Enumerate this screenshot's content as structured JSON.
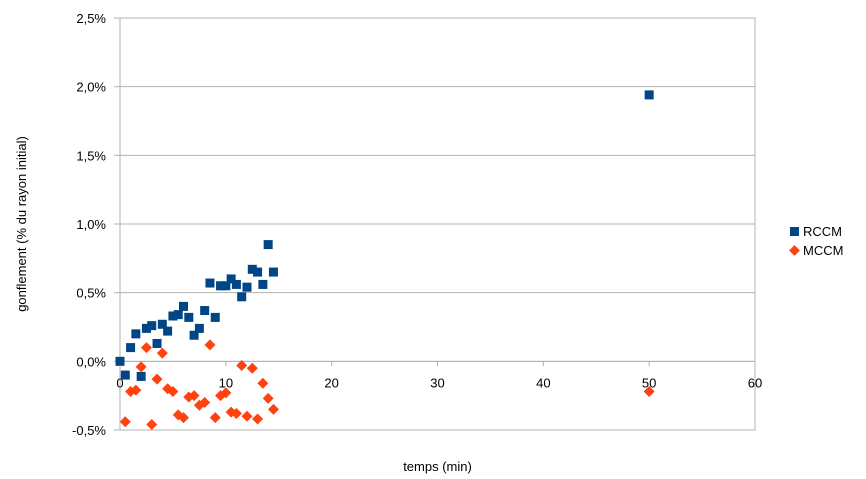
{
  "chart_data": {
    "type": "scatter",
    "title": "",
    "xlabel": "temps (min)",
    "ylabel": "gonflement (% du rayon initial)",
    "xlim": [
      0,
      60
    ],
    "ylim": [
      -0.5,
      2.5
    ],
    "x_ticks": [
      "0",
      "10",
      "20",
      "30",
      "40",
      "50",
      "60"
    ],
    "y_ticks": [
      "-0,5%",
      "0,0%",
      "0,5%",
      "1,0%",
      "1,5%",
      "2,0%",
      "2,5%"
    ],
    "grid": "horizontal",
    "legend_position": "right",
    "series": [
      {
        "name": "RCCM",
        "color": "#004586",
        "marker": "square",
        "x": [
          0,
          0.5,
          1,
          1.5,
          2,
          2.5,
          3,
          3.5,
          4,
          4.5,
          5,
          5.5,
          6,
          6.5,
          7,
          7.5,
          8,
          8.5,
          9,
          9.5,
          10,
          10.5,
          11,
          11.5,
          12,
          12.5,
          13,
          13.5,
          14,
          14.5,
          50
        ],
        "y": [
          0.0,
          -0.1,
          0.1,
          0.2,
          -0.11,
          0.24,
          0.26,
          0.13,
          0.27,
          0.22,
          0.33,
          0.34,
          0.4,
          0.32,
          0.19,
          0.24,
          0.37,
          0.57,
          0.32,
          0.55,
          0.55,
          0.6,
          0.56,
          0.47,
          0.54,
          0.67,
          0.65,
          0.56,
          0.85,
          0.65,
          1.94
        ]
      },
      {
        "name": "MCCM",
        "color": "#ff420e",
        "marker": "diamond",
        "x": [
          0.5,
          1,
          1.5,
          2,
          2.5,
          3,
          3.5,
          4,
          4.5,
          5,
          5.5,
          6,
          6.5,
          7,
          7.5,
          8,
          8.5,
          9,
          9.5,
          10,
          10.5,
          11,
          11.5,
          12,
          12.5,
          13,
          13.5,
          14,
          14.5,
          50
        ],
        "y": [
          -0.44,
          -0.22,
          -0.21,
          -0.04,
          0.1,
          -0.46,
          -0.13,
          0.06,
          -0.2,
          -0.22,
          -0.39,
          -0.41,
          -0.26,
          -0.25,
          -0.32,
          -0.3,
          0.12,
          -0.41,
          -0.25,
          -0.23,
          -0.37,
          -0.38,
          -0.03,
          -0.4,
          -0.05,
          -0.42,
          -0.16,
          -0.27,
          -0.35,
          -0.22
        ]
      }
    ]
  }
}
